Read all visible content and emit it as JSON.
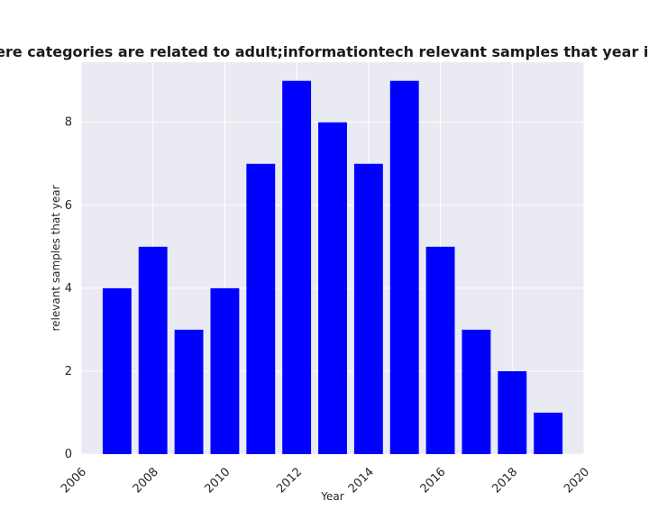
{
  "chart_data": {
    "type": "bar",
    "title": "Number of samples where categories are related to adult;informationtech relevant samples that year in privacy policies by year",
    "xlabel": "Year",
    "ylabel": "relevant samples that year",
    "x": [
      2007,
      2008,
      2009,
      2010,
      2011,
      2012,
      2013,
      2014,
      2015,
      2016,
      2017,
      2018,
      2019
    ],
    "values": [
      4,
      5,
      3,
      4,
      7,
      9,
      8,
      7,
      9,
      5,
      3,
      2,
      1
    ],
    "xlim": [
      2006,
      2020
    ],
    "ylim": [
      0,
      9.45
    ],
    "xticks": [
      2006,
      2008,
      2010,
      2012,
      2014,
      2016,
      2018,
      2020
    ],
    "yticks": [
      0,
      2,
      4,
      6,
      8
    ],
    "bar_color": "#0000ff",
    "background": "#eaeaf2",
    "grid_color": "#ffffff",
    "grid": true
  }
}
